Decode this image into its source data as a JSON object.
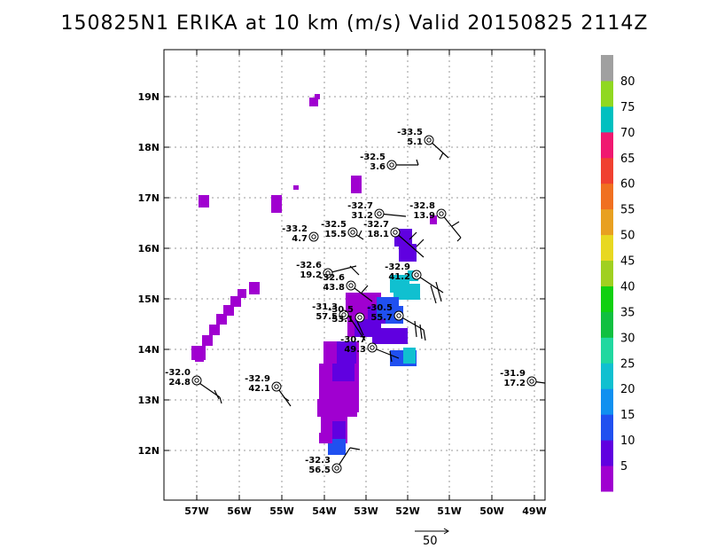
{
  "title": "150825N1 ERIKA at 10 km (m/s) Valid 20150825 2114Z",
  "axes": {
    "lon_labels": [
      "57W",
      "56W",
      "55W",
      "54W",
      "53W",
      "52W",
      "51W",
      "50W",
      "49W"
    ],
    "lat_labels": [
      "12N",
      "13N",
      "14N",
      "15N",
      "16N",
      "17N",
      "18N",
      "19N"
    ]
  },
  "colorbar": {
    "labels": [
      "5",
      "10",
      "15",
      "20",
      "25",
      "30",
      "35",
      "40",
      "45",
      "50",
      "55",
      "60",
      "65",
      "70",
      "75",
      "80"
    ],
    "colors": [
      "#a000d0",
      "#6000e0",
      "#2050f0",
      "#1090f0",
      "#10c0d0",
      "#20d8a0",
      "#10c040",
      "#10d010",
      "#a0d020",
      "#e8d820",
      "#e8a020",
      "#f07020",
      "#f04030",
      "#f01870",
      "#00c0c0",
      "#90d820",
      "#a0a0a0"
    ]
  },
  "reference_vector": {
    "label": "50"
  },
  "observations": [
    {
      "top": "-33.5",
      "bottom": "5.1"
    },
    {
      "top": "-32.5",
      "bottom": "3.6"
    },
    {
      "top": "-32.7",
      "bottom": "31.2"
    },
    {
      "top": "-32.8",
      "bottom": "13.9"
    },
    {
      "top": "-32.5",
      "bottom": "15.5"
    },
    {
      "top": "-32.7",
      "bottom": "18.1"
    },
    {
      "top": "-33.2",
      "bottom": "4.7"
    },
    {
      "top": "-32.6",
      "bottom": "19.2"
    },
    {
      "top": "-32.9",
      "bottom": "41.2"
    },
    {
      "top": "-32.6",
      "bottom": "43.8"
    },
    {
      "top": "-31.3",
      "bottom": "57.5"
    },
    {
      "top": "-30.5",
      "bottom": "53.1"
    },
    {
      "top": "-30.5",
      "bottom": "55.7"
    },
    {
      "top": "-30.7",
      "bottom": "49.3"
    },
    {
      "top": "-32.0",
      "bottom": "24.8"
    },
    {
      "top": "-32.9",
      "bottom": "42.1"
    },
    {
      "top": "-31.9",
      "bottom": "17.2"
    },
    {
      "top": "-32.3",
      "bottom": "56.5"
    }
  ]
}
